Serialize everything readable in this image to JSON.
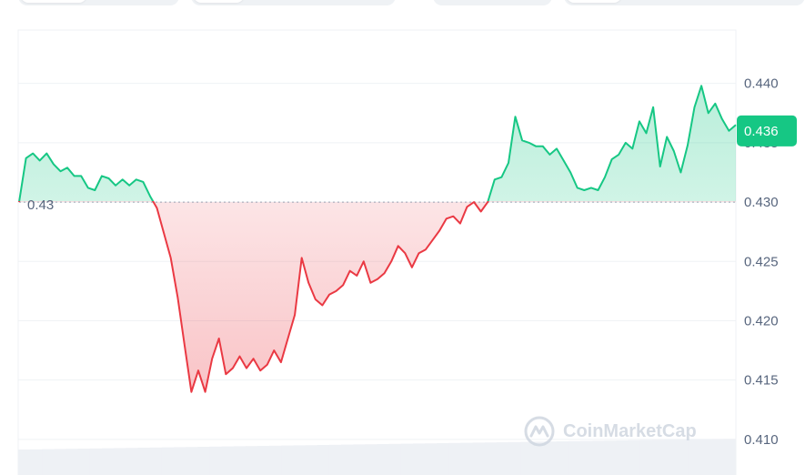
{
  "watermark": "CoinMarketCap",
  "current_price_label": "0.436",
  "colors": {
    "up": "#16c784",
    "down": "#ea3943",
    "grid": "#eff2f5",
    "axis_text": "#58667e",
    "baseline": "#cfd6e4"
  },
  "chart_data": {
    "type": "area",
    "title": "",
    "xlabel": "",
    "ylabel": "",
    "ylim": [
      0.407,
      0.4445
    ],
    "yticks": [
      0.41,
      0.415,
      0.42,
      0.425,
      0.43,
      0.435,
      0.44
    ],
    "ytick_labels": [
      "0.410",
      "0.415",
      "0.420",
      "0.425",
      "0.430",
      "0.435",
      "0.440"
    ],
    "baseline": 0.43,
    "baseline_label": "0.43",
    "current_value": 0.436,
    "grid": true,
    "up_color": "#16c784",
    "down_color": "#ea3943",
    "series": [
      {
        "values": [
          0.43,
          0.4337,
          0.4341,
          0.4335,
          0.4341,
          0.4332,
          0.4326,
          0.4329,
          0.4322,
          0.4322,
          0.4312,
          0.431,
          0.4322,
          0.432,
          0.4314,
          0.4319,
          0.4314,
          0.4319,
          0.4317,
          0.4305,
          0.4295,
          0.4274,
          0.4253,
          0.422,
          0.418,
          0.414,
          0.4158,
          0.414,
          0.4168,
          0.4185,
          0.4155,
          0.416,
          0.417,
          0.416,
          0.4168,
          0.4158,
          0.4163,
          0.4175,
          0.4165,
          0.4185,
          0.4205,
          0.4253,
          0.4232,
          0.4218,
          0.4213,
          0.4222,
          0.4225,
          0.423,
          0.4242,
          0.4238,
          0.425,
          0.4232,
          0.4235,
          0.424,
          0.425,
          0.4263,
          0.4257,
          0.4245,
          0.4257,
          0.426,
          0.4268,
          0.4276,
          0.4286,
          0.4288,
          0.4282,
          0.4296,
          0.43,
          0.4292,
          0.43,
          0.4319,
          0.4321,
          0.4333,
          0.4372,
          0.4352,
          0.435,
          0.4347,
          0.4347,
          0.434,
          0.4345,
          0.4335,
          0.4325,
          0.4312,
          0.431,
          0.4312,
          0.431,
          0.4321,
          0.4336,
          0.434,
          0.435,
          0.4345,
          0.4368,
          0.4358,
          0.438,
          0.433,
          0.4355,
          0.4343,
          0.4325,
          0.4348,
          0.438,
          0.4398,
          0.4375,
          0.4383,
          0.437,
          0.436,
          0.4365
        ]
      }
    ]
  }
}
